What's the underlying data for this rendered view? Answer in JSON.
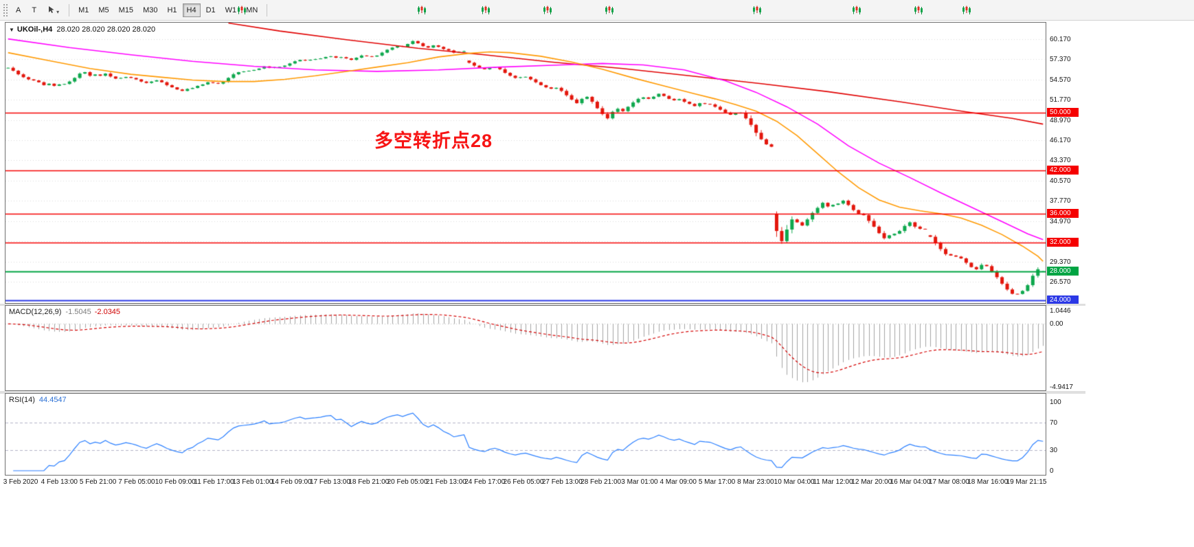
{
  "toolbar": {
    "tool_a": "A",
    "tool_t": "T",
    "timeframes": [
      "M1",
      "M5",
      "M15",
      "M30",
      "H1",
      "H4",
      "D1",
      "W1",
      "MN"
    ],
    "active": "H4"
  },
  "chart": {
    "symbol_tf": "UKOil-,H4",
    "ohlc_text": "28.020 28.020 28.020 28.020",
    "annotation": "多空转折点28"
  },
  "indicators": {
    "macd": {
      "title": "MACD(12,26,9)",
      "v1": "-1.5045",
      "v2": "-2.0345"
    },
    "rsi": {
      "title": "RSI(14)",
      "value": "44.4547"
    }
  },
  "chart_data": {
    "type": "candlestick",
    "symbol": "UKOil-",
    "timeframe": "H4",
    "price_axis": {
      "view_max": 62.45,
      "view_min": 23.62,
      "ticks": [
        60.17,
        57.37,
        54.57,
        51.77,
        48.97,
        46.17,
        43.37,
        40.57,
        37.77,
        34.97,
        32.17,
        29.37,
        26.57
      ]
    },
    "hlines": [
      {
        "price": 50.0,
        "label": "50.000",
        "color": "#f50000"
      },
      {
        "price": 42.0,
        "label": "42.000",
        "color": "#f50000"
      },
      {
        "price": 36.0,
        "label": "36.000",
        "color": "#f50000"
      },
      {
        "price": 32.0,
        "label": "32.000",
        "color": "#f50000"
      },
      {
        "price": 28.0,
        "label": "28.000",
        "color": "#00a443"
      },
      {
        "price": 24.0,
        "label": "24.000",
        "color": "#2b38e6"
      }
    ],
    "closes": [
      56.2,
      55.8,
      55.3,
      54.9,
      54.6,
      54.45,
      54.2,
      53.8,
      54.0,
      53.7,
      53.9,
      53.96,
      54.3,
      54.8,
      55.4,
      55.6,
      55.1,
      55.28,
      55.1,
      55.4,
      55.0,
      54.7,
      54.8,
      54.93,
      54.8,
      54.6,
      54.3,
      54.1,
      54.3,
      54.47,
      54.2,
      53.8,
      53.5,
      53.2,
      53.0,
      53.27,
      53.4,
      53.7,
      53.9,
      54.2,
      54.1,
      54.01,
      54.3,
      54.8,
      55.3,
      55.6,
      55.7,
      55.79,
      55.9,
      56.1,
      56.4,
      56.2,
      56.3,
      56.34,
      56.5,
      56.8,
      57.1,
      57.3,
      57.2,
      57.32,
      57.4,
      57.5,
      57.7,
      57.8,
      57.6,
      57.67,
      57.5,
      57.3,
      57.6,
      57.9,
      57.8,
      57.75,
      57.9,
      58.3,
      58.7,
      59.0,
      59.2,
      59.12,
      59.5,
      59.9,
      59.6,
      59.2,
      59.0,
      59.31,
      59.1,
      58.8,
      58.6,
      58.3,
      58.4,
      58.5,
      56.9,
      56.5,
      56.2,
      56.0,
      56.2,
      56.3,
      56.0,
      55.5,
      55.1,
      54.8,
      54.9,
      54.95,
      54.6,
      54.2,
      53.8,
      53.5,
      53.3,
      53.43,
      53.0,
      52.4,
      51.8,
      51.3,
      51.9,
      52.18,
      51.5,
      50.6,
      49.8,
      49.2,
      50.1,
      50.52,
      50.2,
      50.8,
      51.4,
      51.9,
      52.1,
      51.9,
      52.2,
      52.6,
      52.3,
      51.9,
      51.7,
      51.86,
      51.5,
      51.2,
      50.9,
      51.3,
      51.2,
      51.13,
      50.8,
      50.4,
      50.0,
      49.7,
      49.9,
      49.99,
      49.2,
      48.3,
      47.2,
      46.3,
      45.6,
      45.27,
      33.6,
      32.2,
      33.8,
      35.2,
      34.8,
      34.36,
      35.2,
      36.1,
      36.8,
      37.5,
      37.0,
      37.22,
      37.4,
      37.8,
      37.2,
      36.5,
      36.0,
      35.79,
      35.0,
      34.2,
      33.3,
      32.6,
      33.0,
      33.22,
      33.6,
      34.3,
      34.8,
      34.2,
      33.9,
      33.85,
      32.8,
      31.9,
      31.1,
      30.4,
      30.2,
      30.05,
      29.8,
      29.2,
      28.6,
      28.3,
      28.9,
      28.73,
      28.0,
      27.2,
      26.3,
      25.5,
      24.9,
      24.88,
      25.3,
      26.1,
      27.4,
      28.3,
      28.02
    ],
    "gap_opens": {
      "90": 57.2,
      "150": 36.0,
      "180": 33.0,
      "202": 28.02
    },
    "ma_lines": [
      {
        "name": "ma-slow",
        "color": "#e00000",
        "points": [
          [
            43,
            62.4
          ],
          [
            53,
            61.3
          ],
          [
            66,
            60.1
          ],
          [
            80,
            58.9
          ],
          [
            93,
            58.0
          ],
          [
            106,
            57.0
          ],
          [
            120,
            56.1
          ],
          [
            133,
            55.1
          ],
          [
            147,
            54.0
          ],
          [
            160,
            52.9
          ],
          [
            174,
            51.5
          ],
          [
            187,
            50.1
          ],
          [
            196,
            49.2
          ],
          [
            202,
            48.4
          ]
        ]
      },
      {
        "name": "ma-mid",
        "color": "#ff00ff",
        "points": [
          [
            0,
            60.2
          ],
          [
            12,
            59.0
          ],
          [
            24,
            58.0
          ],
          [
            36,
            57.1
          ],
          [
            48,
            56.4
          ],
          [
            60,
            55.9
          ],
          [
            72,
            55.7
          ],
          [
            84,
            55.9
          ],
          [
            96,
            56.3
          ],
          [
            108,
            56.6
          ],
          [
            116,
            56.8
          ],
          [
            124,
            56.6
          ],
          [
            132,
            55.9
          ],
          [
            140,
            54.4
          ],
          [
            146,
            52.8
          ],
          [
            152,
            50.8
          ],
          [
            158,
            48.4
          ],
          [
            164,
            45.4
          ],
          [
            170,
            43.0
          ],
          [
            176,
            41.0
          ],
          [
            182,
            38.9
          ],
          [
            188,
            36.9
          ],
          [
            194,
            34.9
          ],
          [
            199,
            33.2
          ],
          [
            202,
            32.4
          ]
        ]
      },
      {
        "name": "ma-fast",
        "color": "#ff9900",
        "points": [
          [
            0,
            58.3
          ],
          [
            8,
            57.2
          ],
          [
            16,
            56.1
          ],
          [
            24,
            55.3
          ],
          [
            30,
            54.9
          ],
          [
            36,
            54.5
          ],
          [
            42,
            54.3
          ],
          [
            48,
            54.3
          ],
          [
            54,
            54.6
          ],
          [
            60,
            55.1
          ],
          [
            66,
            55.7
          ],
          [
            72,
            56.3
          ],
          [
            78,
            56.9
          ],
          [
            84,
            57.7
          ],
          [
            90,
            58.2
          ],
          [
            94,
            58.4
          ],
          [
            98,
            58.3
          ],
          [
            104,
            57.8
          ],
          [
            110,
            57.0
          ],
          [
            116,
            56.0
          ],
          [
            122,
            54.8
          ],
          [
            128,
            53.7
          ],
          [
            134,
            52.6
          ],
          [
            138,
            51.9
          ],
          [
            142,
            51.1
          ],
          [
            146,
            50.2
          ],
          [
            150,
            48.8
          ],
          [
            154,
            46.8
          ],
          [
            158,
            44.3
          ],
          [
            162,
            41.8
          ],
          [
            166,
            39.6
          ],
          [
            170,
            37.9
          ],
          [
            174,
            36.9
          ],
          [
            178,
            36.4
          ],
          [
            182,
            36.0
          ],
          [
            186,
            35.4
          ],
          [
            190,
            34.4
          ],
          [
            194,
            33.1
          ],
          [
            198,
            31.5
          ],
          [
            201,
            30.1
          ],
          [
            202,
            29.4
          ]
        ]
      }
    ],
    "macd": {
      "params": [
        12,
        26,
        9
      ],
      "axis": [
        {
          "v": 1.0446,
          "label": "1.0446"
        },
        {
          "v": 0,
          "label": "0.00"
        },
        {
          "v": -4.9417,
          "label": "-4.9417"
        }
      ]
    },
    "rsi": {
      "period": 14,
      "levels": [
        70,
        30
      ],
      "axis": [
        {
          "v": 100,
          "label": "100"
        },
        {
          "v": 70,
          "label": "70"
        },
        {
          "v": 30,
          "label": "30"
        },
        {
          "v": 0,
          "label": "0"
        }
      ]
    },
    "time_labels": [
      "3 Feb 2020",
      "4 Feb 13:00",
      "5 Feb 21:00",
      "7 Feb 05:00",
      "10 Feb 09:00",
      "11 Feb 17:00",
      "13 Feb 01:00",
      "14 Feb 09:00",
      "17 Feb 13:00",
      "18 Feb 21:00",
      "20 Feb 05:00",
      "21 Feb 13:00",
      "24 Feb 17:00",
      "26 Feb 05:00",
      "27 Feb 13:00",
      "28 Feb 21:00",
      "3 Mar 01:00",
      "4 Mar 09:00",
      "5 Mar 17:00",
      "8 Mar 23:00",
      "10 Mar 04:00",
      "11 Mar 12:00",
      "12 Mar 20:00",
      "16 Mar 04:00",
      "17 Mar 08:00",
      "18 Mar 16:00",
      "19 Mar 21:15"
    ],
    "colors": {
      "up": "#0fa84e",
      "down": "#e3170d",
      "ma_fast": "#ff9900",
      "ma_mid": "#ff00ff",
      "ma_slow": "#e00000",
      "macd_hist": "#a2a2a2",
      "macd_signal": "#d40000",
      "rsi_line": "#2a7fff",
      "grid": "#d9d9d9"
    }
  }
}
